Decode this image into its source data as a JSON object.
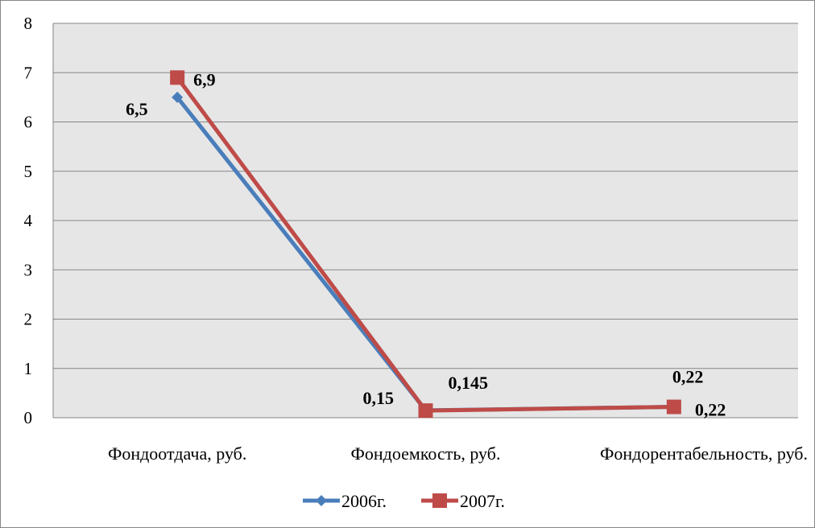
{
  "chart_data": {
    "type": "line",
    "title": "",
    "xlabel": "",
    "ylabel": "",
    "categories": [
      "Фондоотдача, руб.",
      "Фондоемкость, руб.",
      "Фондорентабельность, руб."
    ],
    "ylim": [
      0,
      8
    ],
    "yticks": [
      0,
      1,
      2,
      3,
      4,
      5,
      6,
      7,
      8
    ],
    "grid": true,
    "legend_position": "bottom",
    "series": [
      {
        "name": "2006г.",
        "values": [
          6.5,
          0.15,
          0.22
        ],
        "labels": [
          "6,5",
          "0,15",
          "0,22"
        ],
        "color": "#4a7ebb",
        "marker": "diamond"
      },
      {
        "name": "2007г.",
        "values": [
          6.9,
          0.145,
          0.22
        ],
        "labels": [
          "6,9",
          "0,145",
          "0,22"
        ],
        "color": "#be4b48",
        "marker": "square"
      }
    ],
    "plot_background": "#e6e6e6",
    "gridline_color": "#868686"
  }
}
